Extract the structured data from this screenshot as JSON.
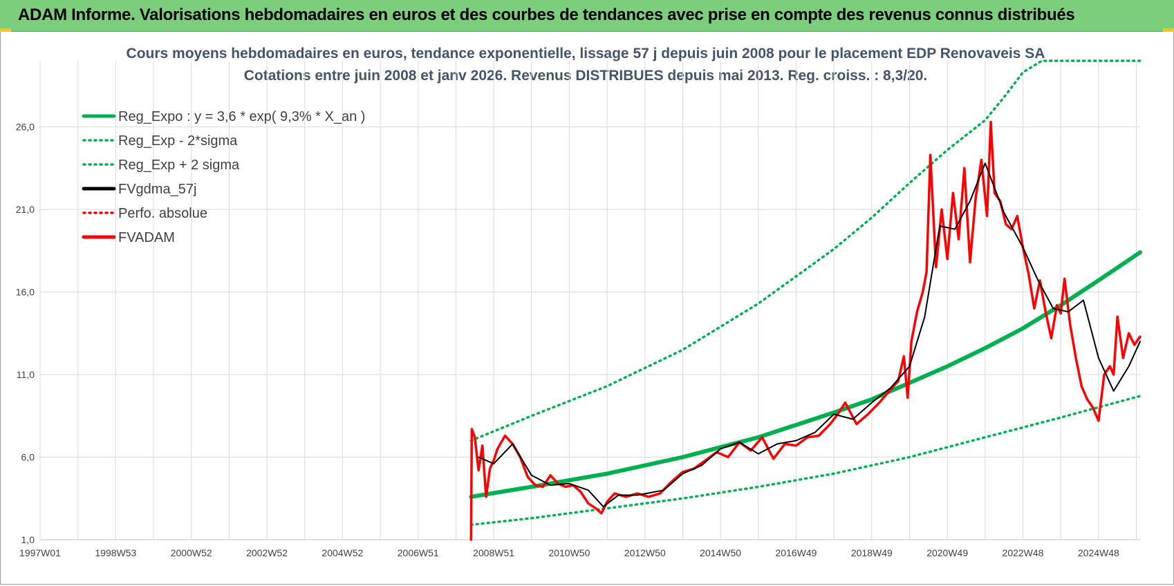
{
  "banner": {
    "title": "ADAM Informe. Valorisations hebdomadaires en euros et des courbes de tendances avec prise en compte des revenus connus distribués"
  },
  "colors": {
    "banner_bg": "#7ccd7c",
    "trend_green": "#00b050",
    "red": "#ff0000",
    "black": "#000000",
    "grid": "#d9d9d9",
    "title_text": "#44546a"
  },
  "chart_data": {
    "type": "line",
    "title": "Cours moyens hebdomadaires en euros, tendance exponentielle, lissage 57 j depuis juin 2008 pour le placement EDP Renovaveis SA",
    "subtitle": "Cotations entre juin 2008 et janv 2026.  Revenus DISTRIBUES depuis mai 2013. Reg.  croiss. : 8,3/20.",
    "xlabel": "",
    "ylabel": "",
    "x_ticks": [
      "1997W01",
      "1998W53",
      "2000W52",
      "2002W52",
      "2004W52",
      "2006W51",
      "2008W51",
      "2010W50",
      "2012W50",
      "2014W50",
      "2016W49",
      "2018W49",
      "2020W49",
      "2022W48",
      "2024W48"
    ],
    "xlim": [
      1997.0,
      2026.1
    ],
    "y_ticks": [
      "1,0",
      "6,0",
      "11,0",
      "16,0",
      "21,0",
      "26,0"
    ],
    "ylim": [
      1.0,
      30.0
    ],
    "grid": true,
    "legend_position": "top-left",
    "legend": [
      {
        "label": "Reg_Expo : y = 3,6 * exp( 9,3% *  X_an )",
        "style": "solid",
        "color": "#00b050"
      },
      {
        "label": "Reg_Exp - 2*sigma",
        "style": "dotted",
        "color": "#00b050"
      },
      {
        "label": "Reg_Exp + 2 sigma",
        "style": "dotted",
        "color": "#00b050"
      },
      {
        "label": "FVgdma_57j",
        "style": "solid",
        "color": "#000000"
      },
      {
        "label": "Perfo. absolue",
        "style": "dotted",
        "color": "#ff0000"
      },
      {
        "label": "FVADAM",
        "style": "solid",
        "color": "#ff0000"
      }
    ],
    "series": [
      {
        "name": "Reg_Expo : y = 3,6 * exp( 9,3% *  X_an )",
        "x": [
          2008.4,
          2010,
          2012,
          2014,
          2016,
          2018,
          2019,
          2020,
          2021,
          2022,
          2023,
          2024,
          2025,
          2026.1
        ],
        "values": [
          3.6,
          4.2,
          5.0,
          6.0,
          7.2,
          8.7,
          9.5,
          10.5,
          11.5,
          12.6,
          13.8,
          15.2,
          16.7,
          18.4
        ]
      },
      {
        "name": "Reg_Exp - 2*sigma",
        "x": [
          2008.4,
          2010,
          2012,
          2014,
          2016,
          2018,
          2020,
          2022,
          2024,
          2026.1
        ],
        "values": [
          1.9,
          2.3,
          2.9,
          3.5,
          4.2,
          5.0,
          6.0,
          7.2,
          8.4,
          9.7
        ]
      },
      {
        "name": "Reg_Exp + 2 sigma",
        "x": [
          2008.4,
          2010,
          2012,
          2014,
          2016,
          2018,
          2019,
          2020,
          2021,
          2022,
          2022.5,
          2023,
          2023.5,
          2024,
          2026.1
        ],
        "values": [
          7.0,
          8.5,
          10.3,
          12.5,
          15.3,
          18.6,
          20.5,
          22.6,
          24.6,
          26.4,
          27.8,
          29.3,
          30.0,
          30.0,
          30.0
        ]
      },
      {
        "name": "FVgdma_57j",
        "x": [
          2008.6,
          2009.0,
          2009.5,
          2010.0,
          2010.5,
          2011.0,
          2011.5,
          2011.9,
          2012.3,
          2012.8,
          2013.5,
          2014.0,
          2014.5,
          2015.0,
          2015.5,
          2016.0,
          2016.5,
          2017.0,
          2017.5,
          2018.0,
          2018.5,
          2019.0,
          2019.5,
          2020.0,
          2020.4,
          2020.8,
          2021.2,
          2021.6,
          2022.0,
          2022.5,
          2023.0,
          2023.4,
          2023.8,
          2024.2,
          2024.6,
          2025.0,
          2025.4,
          2025.8,
          2026.1
        ],
        "values": [
          6.0,
          5.6,
          6.8,
          4.9,
          4.3,
          4.4,
          4.0,
          3.0,
          3.7,
          3.7,
          4.0,
          5.0,
          5.5,
          6.5,
          6.9,
          6.2,
          6.8,
          7.0,
          7.5,
          8.6,
          8.3,
          9.3,
          10.2,
          11.5,
          14.5,
          20.0,
          19.8,
          21.5,
          23.8,
          20.8,
          18.7,
          16.7,
          15.0,
          14.8,
          15.5,
          12.0,
          10.0,
          11.5,
          13.0
        ]
      },
      {
        "name": "FVADAM",
        "x": [
          2008.4,
          2008.42,
          2008.5,
          2008.6,
          2008.7,
          2008.8,
          2008.9,
          2009.0,
          2009.1,
          2009.3,
          2009.5,
          2009.7,
          2009.9,
          2010.1,
          2010.3,
          2010.5,
          2010.7,
          2010.9,
          2011.1,
          2011.3,
          2011.5,
          2011.7,
          2011.85,
          2012.0,
          2012.2,
          2012.5,
          2012.8,
          2013.1,
          2013.4,
          2013.7,
          2014.0,
          2014.3,
          2014.6,
          2014.9,
          2015.2,
          2015.5,
          2015.8,
          2016.1,
          2016.4,
          2016.7,
          2017.0,
          2017.3,
          2017.6,
          2017.9,
          2018.1,
          2018.3,
          2018.6,
          2018.9,
          2019.2,
          2019.5,
          2019.7,
          2019.85,
          2019.95,
          2020.05,
          2020.2,
          2020.35,
          2020.45,
          2020.55,
          2020.7,
          2020.85,
          2021.0,
          2021.15,
          2021.3,
          2021.45,
          2021.6,
          2021.75,
          2021.9,
          2022.05,
          2022.15,
          2022.25,
          2022.4,
          2022.55,
          2022.7,
          2022.85,
          2023.0,
          2023.15,
          2023.3,
          2023.45,
          2023.6,
          2023.75,
          2023.9,
          2024.0,
          2024.1,
          2024.25,
          2024.4,
          2024.55,
          2024.7,
          2024.85,
          2025.0,
          2025.15,
          2025.3,
          2025.4,
          2025.5,
          2025.65,
          2025.8,
          2025.95,
          2026.1
        ],
        "values": [
          1.0,
          7.7,
          7.2,
          5.2,
          6.7,
          3.6,
          5.3,
          5.8,
          6.5,
          7.3,
          6.8,
          6.0,
          4.8,
          4.3,
          4.2,
          4.9,
          4.4,
          4.2,
          4.3,
          3.9,
          3.2,
          2.9,
          2.6,
          3.3,
          3.8,
          3.6,
          3.8,
          3.6,
          3.8,
          4.5,
          5.1,
          5.3,
          5.8,
          6.3,
          6.0,
          6.9,
          6.4,
          7.2,
          5.9,
          6.8,
          6.7,
          7.2,
          7.3,
          8.0,
          8.6,
          9.3,
          8.0,
          8.6,
          9.3,
          10.1,
          10.6,
          12.1,
          9.6,
          13.0,
          14.8,
          16.0,
          17.2,
          24.3,
          17.5,
          21.0,
          18.0,
          22.0,
          19.2,
          23.5,
          17.8,
          21.7,
          24.0,
          20.6,
          26.3,
          22.0,
          21.5,
          20.1,
          19.8,
          20.6,
          18.7,
          17.1,
          15.0,
          16.7,
          14.8,
          13.2,
          15.2,
          14.7,
          16.8,
          14.0,
          12.0,
          10.3,
          9.5,
          9.0,
          8.2,
          11.0,
          11.5,
          11.0,
          14.5,
          12.0,
          13.5,
          12.8,
          13.3
        ]
      }
    ]
  }
}
